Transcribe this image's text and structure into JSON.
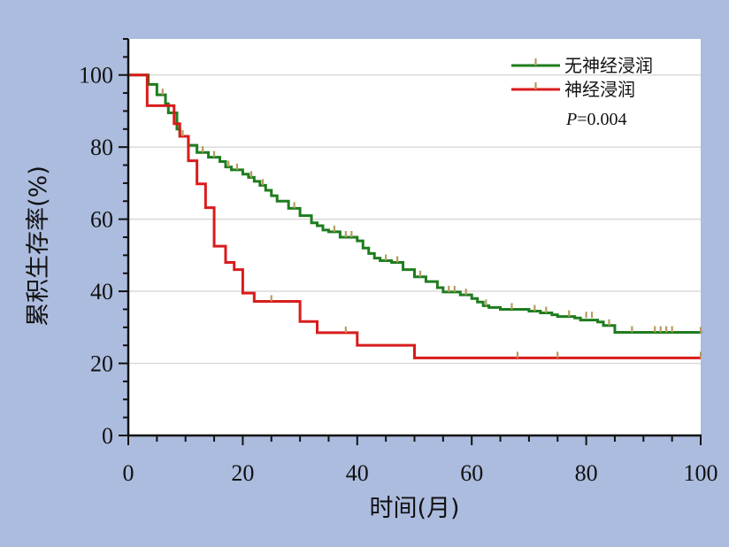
{
  "chart_data": {
    "type": "line",
    "subtype": "kaplan-meier",
    "xlabel": "时间(月)",
    "ylabel": "累积生存率(%)",
    "xlim": [
      0,
      100
    ],
    "ylim": [
      0,
      110
    ],
    "x_ticks": [
      0,
      20,
      40,
      60,
      80,
      100
    ],
    "y_ticks": [
      0,
      20,
      40,
      60,
      80,
      100
    ],
    "grid": "horizontal",
    "legend_position": "top-right",
    "annotation": {
      "italic": "P",
      "rest": "=0.004"
    },
    "censor_mark_color": "#b89a60",
    "series": [
      {
        "name": "无神经浸润",
        "color": "#1e7d1e",
        "steps": [
          [
            0,
            100
          ],
          [
            3.5,
            97.4
          ],
          [
            5,
            94.5
          ],
          [
            6.5,
            92
          ],
          [
            7,
            89.5
          ],
          [
            8.5,
            85
          ],
          [
            9,
            83
          ],
          [
            10.5,
            80.5
          ],
          [
            12,
            78.5
          ],
          [
            14,
            77.2
          ],
          [
            16,
            76
          ],
          [
            17,
            74.5
          ],
          [
            18,
            73.7
          ],
          [
            20,
            72.5
          ],
          [
            21,
            71.6
          ],
          [
            22,
            70.5
          ],
          [
            23,
            69.4
          ],
          [
            24,
            68
          ],
          [
            25,
            66.5
          ],
          [
            26,
            65
          ],
          [
            28,
            63
          ],
          [
            30,
            61
          ],
          [
            32,
            59
          ],
          [
            33,
            58.2
          ],
          [
            34,
            57
          ],
          [
            35,
            56.5
          ],
          [
            37,
            55
          ],
          [
            40,
            54
          ],
          [
            41,
            52
          ],
          [
            42,
            50.5
          ],
          [
            43,
            49.2
          ],
          [
            44,
            48.5
          ],
          [
            46,
            48
          ],
          [
            48,
            46
          ],
          [
            50,
            44
          ],
          [
            52,
            42.7
          ],
          [
            54,
            41
          ],
          [
            55,
            39.8
          ],
          [
            58,
            39
          ],
          [
            60,
            38
          ],
          [
            61,
            37
          ],
          [
            62,
            36
          ],
          [
            63,
            35.5
          ],
          [
            65,
            35
          ],
          [
            70,
            34.5
          ],
          [
            72,
            34
          ],
          [
            74,
            33.5
          ],
          [
            75,
            33
          ],
          [
            78,
            32.6
          ],
          [
            79,
            32
          ],
          [
            82,
            31.5
          ],
          [
            83,
            30.5
          ],
          [
            85,
            28.6
          ],
          [
            100,
            28.4
          ]
        ],
        "censored": [
          [
            6,
            94.5
          ],
          [
            9.5,
            83
          ],
          [
            13,
            78.5
          ],
          [
            15,
            77.2
          ],
          [
            17.5,
            74.5
          ],
          [
            19,
            73.7
          ],
          [
            21.5,
            71.6
          ],
          [
            23.5,
            69.4
          ],
          [
            29,
            63
          ],
          [
            36,
            56.5
          ],
          [
            38,
            55
          ],
          [
            39,
            55
          ],
          [
            45,
            48.5
          ],
          [
            47,
            48
          ],
          [
            51,
            44
          ],
          [
            56,
            39.8
          ],
          [
            57,
            39.8
          ],
          [
            59,
            39
          ],
          [
            62.5,
            36
          ],
          [
            67,
            35
          ],
          [
            71,
            34.5
          ],
          [
            73,
            34
          ],
          [
            77,
            33
          ],
          [
            80,
            32.6
          ],
          [
            81,
            32.6
          ],
          [
            84,
            30.5
          ],
          [
            88,
            28.6
          ],
          [
            92,
            28.6
          ],
          [
            93,
            28.6
          ],
          [
            94,
            28.6
          ],
          [
            95,
            28.6
          ],
          [
            100,
            28.4
          ]
        ]
      },
      {
        "name": "神经浸润",
        "color": "#d91c1c",
        "steps": [
          [
            0,
            100
          ],
          [
            3.3,
            91.5
          ],
          [
            6.5,
            91.5
          ],
          [
            8,
            86.5
          ],
          [
            9,
            83
          ],
          [
            10.5,
            76.2
          ],
          [
            12,
            69.8
          ],
          [
            13.5,
            63.2
          ],
          [
            15,
            52.5
          ],
          [
            17,
            48
          ],
          [
            18.5,
            46
          ],
          [
            20,
            39.5
          ],
          [
            22,
            37.2
          ],
          [
            30,
            31.6
          ],
          [
            33,
            28.5
          ],
          [
            40,
            25
          ],
          [
            50,
            21.5
          ],
          [
            100,
            21.5
          ]
        ],
        "censored": [
          [
            25,
            37.2
          ],
          [
            38,
            28.5
          ],
          [
            68,
            21.5
          ],
          [
            75,
            21.5
          ],
          [
            100,
            21.5
          ]
        ]
      }
    ]
  }
}
